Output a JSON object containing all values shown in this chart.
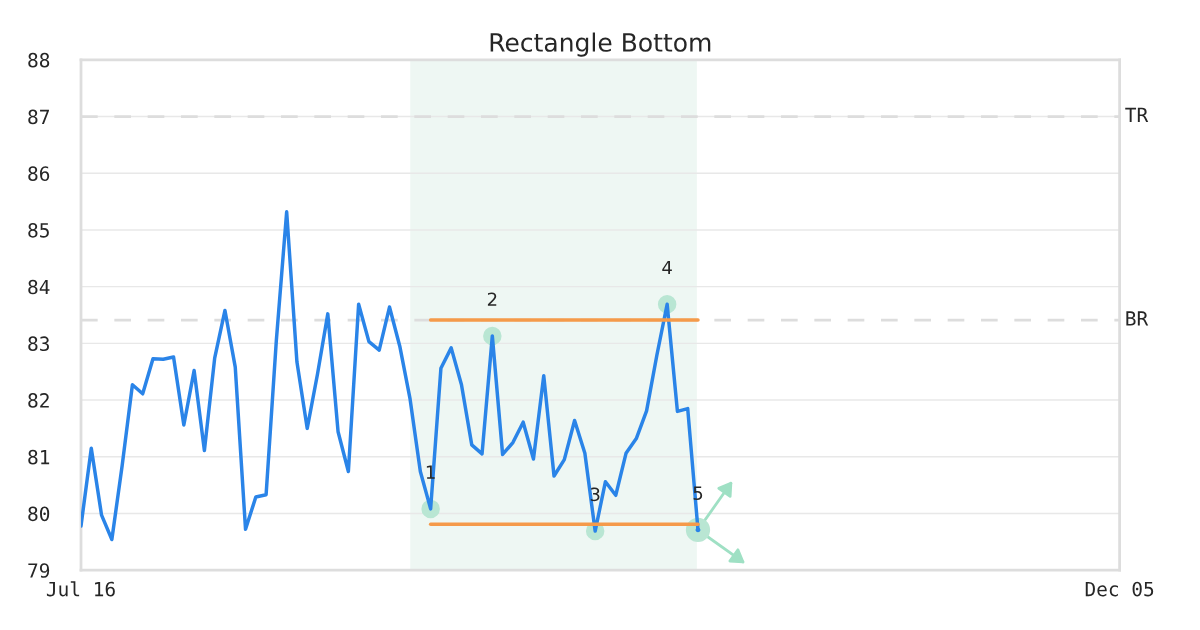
{
  "chart_data": {
    "type": "line",
    "title": "Rectangle Bottom",
    "categories": [
      "Jul 16",
      null,
      null,
      null,
      null,
      null,
      null,
      null,
      null,
      null,
      null,
      null,
      null,
      null,
      null,
      null,
      null,
      null,
      null,
      null,
      null,
      null,
      null,
      null,
      null,
      null,
      null,
      null,
      null,
      null,
      null,
      null,
      null,
      null,
      null,
      null,
      null,
      null,
      null,
      null,
      null,
      null,
      null,
      null,
      null,
      null,
      null,
      null,
      null,
      null,
      null,
      null,
      null,
      null,
      null,
      null,
      null,
      null,
      null,
      null,
      null,
      null,
      null,
      null,
      null,
      null,
      null,
      null,
      null,
      null,
      null,
      null,
      null,
      null,
      null,
      null,
      null,
      null,
      null,
      null,
      null,
      null,
      null,
      null,
      null,
      null,
      null,
      null,
      null,
      null,
      null,
      null,
      null,
      null,
      null,
      null,
      null,
      null,
      null,
      null,
      null,
      "Dec 05"
    ],
    "ylim": [
      79,
      88
    ],
    "yticks": [
      79,
      80,
      81,
      82,
      83,
      84,
      85,
      86,
      87,
      88
    ],
    "grid": "y",
    "series": [
      {
        "color": "#2a84e8",
        "values": [
          79.78,
          81.15,
          79.97,
          79.54,
          80.84,
          82.27,
          82.11,
          82.73,
          82.72,
          82.76,
          81.56,
          82.52,
          81.11,
          82.74,
          83.58,
          82.58,
          79.72,
          80.29,
          80.33,
          83.06,
          85.32,
          82.67,
          81.5,
          82.46,
          83.52,
          81.44,
          80.74,
          83.69,
          83.03,
          82.88,
          83.64,
          82.95,
          82.02,
          80.74,
          80.08,
          82.56,
          82.92,
          82.27,
          81.21,
          81.05,
          83.13,
          81.04,
          81.25,
          81.61,
          80.96,
          82.43,
          80.66,
          80.95,
          81.64,
          81.06,
          79.69,
          80.56,
          80.32,
          81.06,
          81.32,
          81.81,
          82.79,
          83.69,
          81.8,
          81.85,
          79.71,
          null,
          null,
          null,
          null,
          null,
          null,
          null,
          null,
          null,
          null,
          null,
          null,
          null,
          null,
          null,
          null,
          null,
          null,
          null,
          null,
          null,
          null,
          null,
          null,
          null,
          null,
          null,
          null,
          null,
          null,
          null,
          null,
          null,
          null,
          null,
          null,
          null,
          null,
          null,
          null,
          null
        ]
      },
      {
        "color": "#f59a4a",
        "values": [
          null,
          null,
          null,
          null,
          null,
          null,
          null,
          null,
          null,
          null,
          null,
          null,
          null,
          null,
          null,
          null,
          null,
          null,
          null,
          null,
          null,
          null,
          null,
          null,
          null,
          null,
          null,
          null,
          null,
          null,
          null,
          null,
          null,
          null,
          83.41,
          83.41,
          83.41,
          83.41,
          83.41,
          83.41,
          83.41,
          83.41,
          83.41,
          83.41,
          83.41,
          83.41,
          83.41,
          83.41,
          83.41,
          83.41,
          83.41,
          83.41,
          83.41,
          83.41,
          83.41,
          83.41,
          83.41,
          83.41,
          83.41,
          83.41,
          83.41,
          null,
          null,
          null,
          null,
          null,
          null,
          null,
          null,
          null,
          null,
          null,
          null,
          null,
          null,
          null,
          null,
          null,
          null,
          null,
          null,
          null,
          null,
          null,
          null,
          null,
          null,
          null,
          null,
          null,
          null,
          null,
          null,
          null,
          null,
          null,
          null,
          null,
          null,
          null,
          null,
          null
        ]
      },
      {
        "color": "#f59a4a",
        "values": [
          null,
          null,
          null,
          null,
          null,
          null,
          null,
          null,
          null,
          null,
          null,
          null,
          null,
          null,
          null,
          null,
          null,
          null,
          null,
          null,
          null,
          null,
          null,
          null,
          null,
          null,
          null,
          null,
          null,
          null,
          null,
          null,
          null,
          null,
          79.81,
          79.81,
          79.81,
          79.81,
          79.81,
          79.81,
          79.81,
          79.81,
          79.81,
          79.81,
          79.81,
          79.81,
          79.81,
          79.81,
          79.81,
          79.81,
          79.81,
          79.81,
          79.81,
          79.81,
          79.81,
          79.81,
          79.81,
          79.81,
          79.81,
          79.81,
          79.81,
          null,
          null,
          null,
          null,
          null,
          null,
          null,
          null,
          null,
          null,
          null,
          null,
          null,
          null,
          null,
          null,
          null,
          null,
          null,
          null,
          null,
          null,
          null,
          null,
          null,
          null,
          null,
          null,
          null,
          null,
          null,
          null,
          null,
          null,
          null,
          null,
          null,
          null,
          null,
          null,
          null
        ]
      },
      {
        "type": "scatter",
        "color": "#000000",
        "values": [
          null,
          null,
          null,
          null,
          null,
          null,
          null,
          null,
          null,
          null,
          null,
          null,
          null,
          null,
          null,
          null,
          null,
          null,
          null,
          null,
          null,
          null,
          null,
          null,
          null,
          null,
          null,
          null,
          null,
          null,
          null,
          null,
          null,
          null,
          80.08,
          null,
          null,
          null,
          null,
          null,
          83.13,
          null,
          null,
          null,
          null,
          null,
          null,
          null,
          null,
          null,
          79.69,
          null,
          null,
          null,
          null,
          null,
          null,
          83.69,
          null,
          null,
          null,
          null,
          null,
          null,
          null,
          null,
          null,
          null,
          null,
          null,
          null,
          null,
          null,
          null,
          null,
          null,
          null,
          null,
          null,
          null,
          null,
          null,
          null,
          null,
          null,
          null,
          null,
          null,
          null,
          null,
          null,
          null,
          null,
          null,
          null,
          null,
          null,
          null,
          null,
          null,
          null,
          null
        ]
      },
      {
        "type": "scatter",
        "color": "#2a84e8",
        "values": [
          null,
          null,
          null,
          null,
          null,
          null,
          null,
          null,
          null,
          null,
          null,
          null,
          null,
          null,
          null,
          null,
          null,
          null,
          null,
          null,
          null,
          null,
          null,
          null,
          null,
          null,
          null,
          null,
          null,
          null,
          null,
          null,
          null,
          null,
          null,
          null,
          null,
          null,
          null,
          null,
          null,
          null,
          null,
          null,
          null,
          null,
          null,
          null,
          null,
          null,
          null,
          null,
          null,
          null,
          null,
          null,
          null,
          null,
          null,
          null,
          79.71,
          null,
          null,
          null,
          null,
          null,
          null,
          null,
          null,
          null,
          null,
          null,
          null,
          null,
          null,
          null,
          null,
          null,
          null,
          null,
          null,
          null,
          null,
          null,
          null,
          null,
          null,
          null,
          null,
          null,
          null,
          null,
          null,
          null,
          null,
          null,
          null,
          null,
          null,
          null,
          null,
          null
        ]
      }
    ],
    "ref_lines": [
      {
        "axis": "y",
        "value": 87,
        "label": "TR",
        "color": "#dddddd",
        "line_style": "dashed"
      },
      {
        "axis": "y",
        "value": 83.41,
        "label": "BR",
        "color": "#dddddd",
        "line_style": "dashed"
      }
    ],
    "annotations": [
      {
        "text": "1",
        "y": 80.08
      },
      {
        "text": "2",
        "y": 83.13
      },
      {
        "text": "3",
        "y": 79.69
      },
      {
        "text": "4",
        "y": 83.69
      },
      {
        "text": "5",
        "y": 79.71
      }
    ]
  }
}
